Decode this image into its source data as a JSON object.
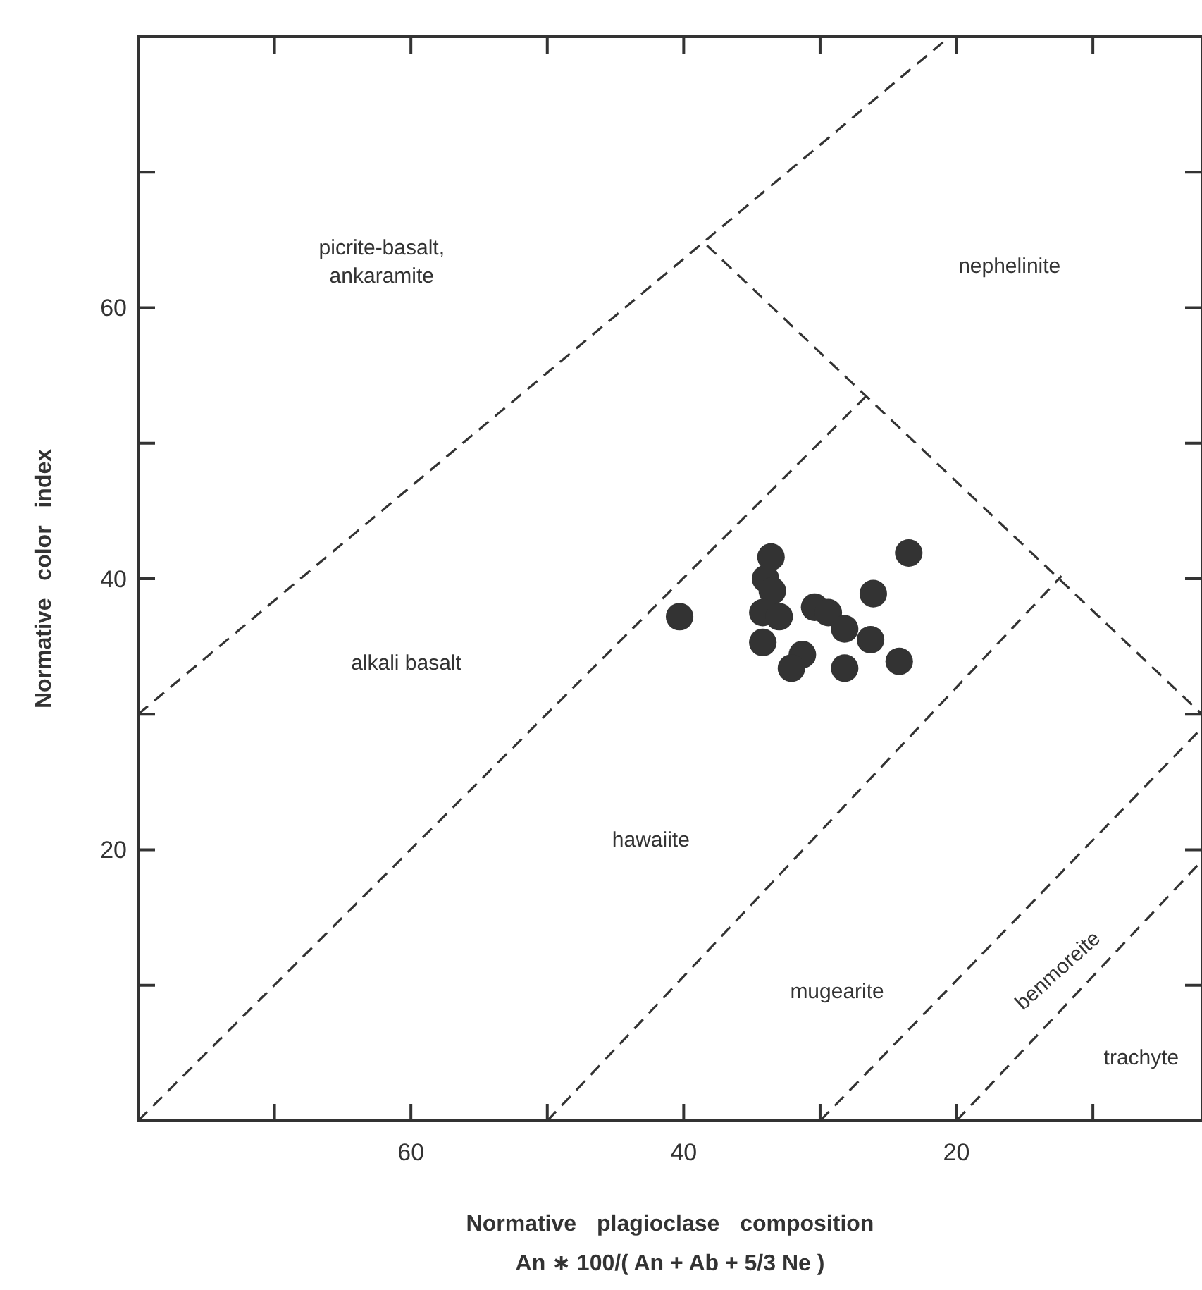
{
  "chart_data": {
    "type": "scatter",
    "xlabel": "Normative plagioclase composition\nAn ∗ 100/( An + Ab + 5/3 Ne )",
    "ylabel": "Normative color index",
    "xlim": [
      80,
      2
    ],
    "ylim": [
      0,
      80
    ],
    "xticks": [
      {
        "value": 70,
        "label": null
      },
      60,
      {
        "value": 50,
        "label": null
      },
      40,
      {
        "value": 30,
        "label": null
      },
      20,
      {
        "value": 10,
        "label": null
      }
    ],
    "yticks": [
      {
        "value": 10,
        "label": null
      },
      20,
      {
        "value": 30,
        "label": null
      },
      40,
      {
        "value": 50,
        "label": null
      },
      60,
      {
        "value": 70,
        "label": null
      }
    ],
    "grid": false,
    "series": [
      {
        "color": "#333333",
        "marker": "circle",
        "x": [
          40.3,
          33.6,
          34.0,
          33.5,
          34.2,
          33.0,
          34.2,
          31.3,
          32.1,
          30.4,
          29.4,
          28.2,
          26.3,
          28.2,
          26.1,
          23.5,
          24.2
        ],
        "values": [
          37.2,
          41.6,
          40.0,
          39.1,
          37.5,
          37.2,
          35.3,
          34.4,
          33.4,
          37.9,
          37.5,
          36.3,
          35.5,
          33.4,
          38.9,
          41.9,
          33.9
        ]
      },
      {
        "type": "line",
        "color": "#333333",
        "marker": "none",
        "line_style": "dashed",
        "x": [
          80,
          20.5
        ],
        "values": [
          30,
          80
        ]
      },
      {
        "type": "line",
        "color": "#333333",
        "marker": "none",
        "line_style": "dashed",
        "x": [
          38.3,
          2
        ],
        "values": [
          64.6,
          30
        ]
      },
      {
        "type": "line",
        "color": "#333333",
        "marker": "none",
        "line_style": "dashed",
        "x": [
          80,
          26.6
        ],
        "values": [
          0,
          53.5
        ]
      },
      {
        "type": "line",
        "color": "#333333",
        "marker": "none",
        "line_style": "dashed",
        "x": [
          50,
          12.3
        ],
        "values": [
          0,
          40.2
        ]
      },
      {
        "type": "line",
        "color": "#333333",
        "marker": "none",
        "line_style": "dashed",
        "x": [
          30,
          2
        ],
        "values": [
          0,
          29
        ]
      },
      {
        "type": "line",
        "color": "#333333",
        "marker": "none",
        "line_style": "dashed",
        "x": [
          20,
          2
        ],
        "values": [
          0,
          19.2
        ]
      }
    ],
    "annotations": [
      "picrite-basalt,\nankaramite",
      "nephelinite",
      "alkali basalt",
      "hawaiite",
      "mugearite",
      "benmoreite",
      "trachyte"
    ]
  }
}
